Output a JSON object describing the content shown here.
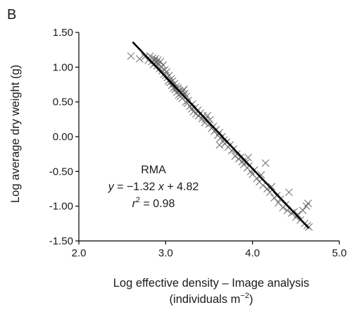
{
  "panel_label": "B",
  "chart_data": {
    "type": "scatter",
    "title": "",
    "xlabel": "Log effective density – Image analysis",
    "xlabel_line2_prefix": "(individuals m",
    "xlabel_line2_sup": "−2",
    "xlabel_line2_suffix": ")",
    "ylabel": "Log average dry weight (g)",
    "xlim": [
      2.0,
      5.0
    ],
    "ylim": [
      -1.5,
      1.5
    ],
    "x_ticks": [
      "2.0",
      "3.0",
      "4.0",
      "5.0"
    ],
    "y_ticks": [
      "1.50",
      "1.00",
      "0.50",
      "0.00",
      "-0.50",
      "-1.00",
      "-1.50"
    ],
    "x_tick_values": [
      2.0,
      3.0,
      4.0,
      5.0
    ],
    "y_tick_values": [
      1.5,
      1.0,
      0.5,
      0.0,
      -0.5,
      -1.0,
      -1.5
    ],
    "marker": "x",
    "marker_color": "#6b6b6b",
    "line_color": "#000000",
    "grid": false,
    "fit_line": {
      "method": "RMA",
      "slope": -1.32,
      "intercept": 4.82,
      "x_range": [
        2.62,
        4.65
      ]
    },
    "annotation": {
      "method": "RMA",
      "eq_y": "y",
      "eq_mid": " = −1.32 ",
      "eq_x": "x",
      "eq_end": " + 4.82",
      "r_label": "r",
      "r_sup": "2",
      "r_value": " = 0.98"
    },
    "points": [
      [
        2.6,
        1.16
      ],
      [
        2.7,
        1.12
      ],
      [
        2.76,
        1.15
      ],
      [
        2.8,
        1.1
      ],
      [
        2.82,
        1.16
      ],
      [
        2.84,
        1.08
      ],
      [
        2.85,
        1.13
      ],
      [
        2.86,
        1.04
      ],
      [
        2.87,
        1.1
      ],
      [
        2.88,
        1.12
      ],
      [
        2.89,
        1.06
      ],
      [
        2.9,
        1.02
      ],
      [
        2.91,
        1.1
      ],
      [
        2.92,
        1.05
      ],
      [
        2.93,
        0.98
      ],
      [
        2.94,
        1.08
      ],
      [
        2.95,
        1.0
      ],
      [
        2.96,
        0.95
      ],
      [
        2.97,
        1.03
      ],
      [
        2.98,
        0.9
      ],
      [
        2.99,
        0.96
      ],
      [
        3.0,
        0.88
      ],
      [
        3.01,
        0.93
      ],
      [
        3.02,
        0.85
      ],
      [
        3.03,
        0.8
      ],
      [
        3.04,
        0.88
      ],
      [
        3.05,
        0.78
      ],
      [
        3.06,
        0.83
      ],
      [
        3.07,
        0.74
      ],
      [
        3.08,
        0.8
      ],
      [
        3.09,
        0.7
      ],
      [
        3.1,
        0.76
      ],
      [
        3.11,
        0.68
      ],
      [
        3.12,
        0.72
      ],
      [
        3.13,
        0.64
      ],
      [
        3.14,
        0.7
      ],
      [
        3.15,
        0.6
      ],
      [
        3.16,
        0.66
      ],
      [
        3.17,
        0.58
      ],
      [
        3.18,
        0.63
      ],
      [
        3.19,
        0.55
      ],
      [
        3.2,
        0.66
      ],
      [
        3.21,
        0.68
      ],
      [
        3.22,
        0.62
      ],
      [
        3.23,
        0.5
      ],
      [
        3.24,
        0.58
      ],
      [
        3.25,
        0.48
      ],
      [
        3.26,
        0.52
      ],
      [
        3.28,
        0.44
      ],
      [
        3.3,
        0.4
      ],
      [
        3.31,
        0.47
      ],
      [
        3.32,
        0.36
      ],
      [
        3.34,
        0.42
      ],
      [
        3.35,
        0.33
      ],
      [
        3.37,
        0.38
      ],
      [
        3.38,
        0.3
      ],
      [
        3.4,
        0.34
      ],
      [
        3.42,
        0.26
      ],
      [
        3.43,
        0.3
      ],
      [
        3.45,
        0.2
      ],
      [
        3.46,
        0.25
      ],
      [
        3.48,
        0.3
      ],
      [
        3.5,
        0.18
      ],
      [
        3.51,
        0.24
      ],
      [
        3.53,
        0.12
      ],
      [
        3.55,
        0.15
      ],
      [
        3.56,
        0.08
      ],
      [
        3.58,
        0.1
      ],
      [
        3.6,
        0.02
      ],
      [
        3.62,
        0.06
      ],
      [
        3.63,
        -0.02
      ],
      [
        3.65,
        0.0
      ],
      [
        3.67,
        -0.05
      ],
      [
        3.68,
        -0.1
      ],
      [
        3.7,
        -0.08
      ],
      [
        3.72,
        -0.15
      ],
      [
        3.74,
        -0.12
      ],
      [
        3.76,
        -0.2
      ],
      [
        3.78,
        -0.18
      ],
      [
        3.8,
        -0.28
      ],
      [
        3.82,
        -0.25
      ],
      [
        3.84,
        -0.32
      ],
      [
        3.86,
        -0.3
      ],
      [
        3.88,
        -0.36
      ],
      [
        3.9,
        -0.4
      ],
      [
        3.92,
        -0.38
      ],
      [
        3.94,
        -0.45
      ],
      [
        3.96,
        -0.42
      ],
      [
        3.98,
        -0.5
      ],
      [
        4.0,
        -0.54
      ],
      [
        4.02,
        -0.48
      ],
      [
        4.05,
        -0.6
      ],
      [
        4.08,
        -0.65
      ],
      [
        4.1,
        -0.55
      ],
      [
        4.12,
        -0.7
      ],
      [
        4.15,
        -0.38
      ],
      [
        4.17,
        -0.75
      ],
      [
        4.2,
        -0.8
      ],
      [
        4.22,
        -0.72
      ],
      [
        4.25,
        -0.88
      ],
      [
        4.28,
        -0.85
      ],
      [
        4.3,
        -0.95
      ],
      [
        4.32,
        -0.9
      ],
      [
        4.35,
        -1.02
      ],
      [
        4.38,
        -0.98
      ],
      [
        4.4,
        -1.06
      ],
      [
        4.42,
        -0.8
      ],
      [
        4.45,
        -1.1
      ],
      [
        4.48,
        -1.08
      ],
      [
        4.5,
        -1.16
      ],
      [
        4.52,
        -1.12
      ],
      [
        4.55,
        -1.2
      ],
      [
        4.58,
        -1.06
      ],
      [
        4.6,
        -1.25
      ],
      [
        4.62,
        -1.0
      ],
      [
        4.63,
        -1.28
      ],
      [
        4.65,
        -1.3
      ],
      [
        4.64,
        -0.96
      ],
      [
        3.62,
        -0.12
      ],
      [
        3.95,
        -0.3
      ]
    ]
  }
}
